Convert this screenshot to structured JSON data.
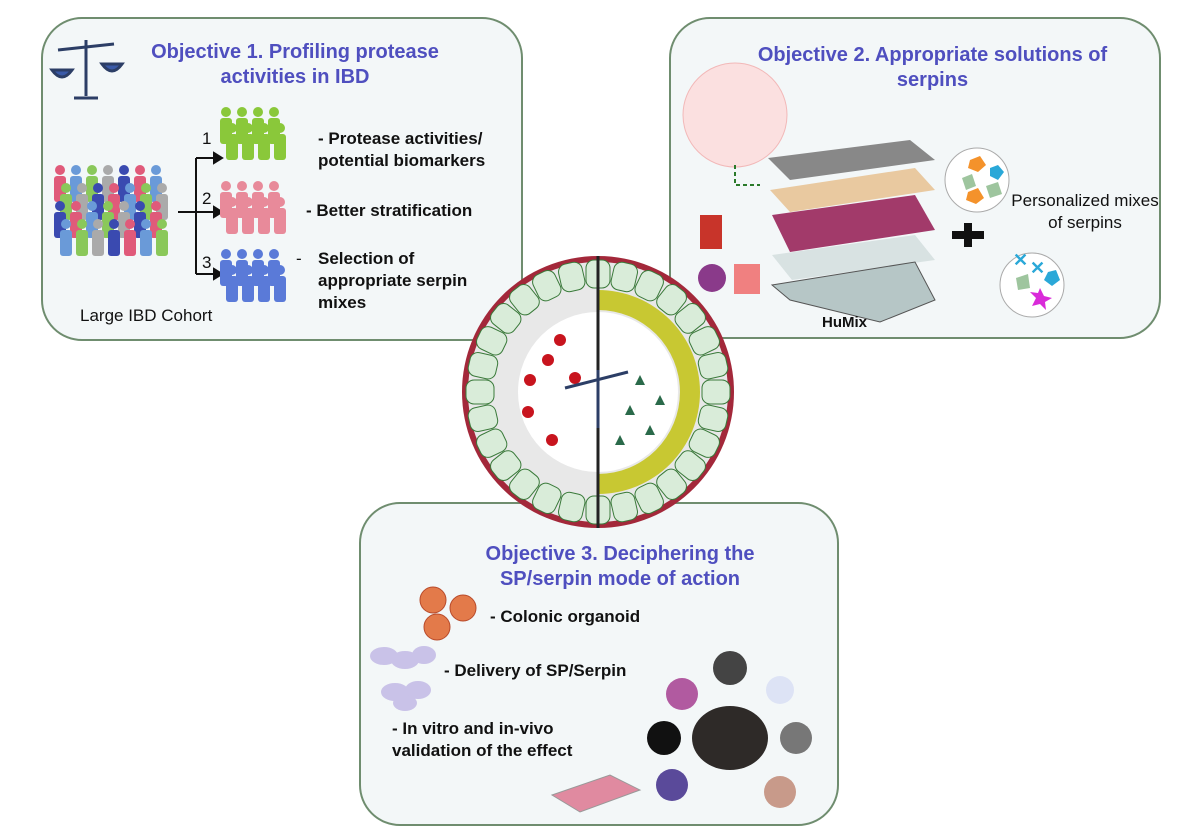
{
  "objective1": {
    "title": "Objective 1. Profiling protease activities in IBD",
    "cohort_label": "Large IBD Cohort",
    "branches": [
      {
        "number": "1",
        "text": "- Protease activities/ potential biomarkers"
      },
      {
        "number": "2",
        "text": "- Better stratification"
      },
      {
        "number": "3",
        "dash": "-",
        "text": "Selection of appropriate serpin mixes"
      }
    ]
  },
  "objective2": {
    "title": "Objective 2. Appropriate solutions of serpins",
    "model_label": "HuMix",
    "mixes_label": "Personalized mixes of serpins"
  },
  "objective3": {
    "title": "Objective 3. Deciphering the SP/serpin mode of action",
    "items": [
      "- Colonic organoid",
      "- Delivery of SP/Serpin",
      "- In vitro and in-vivo validation of the effect"
    ]
  }
}
